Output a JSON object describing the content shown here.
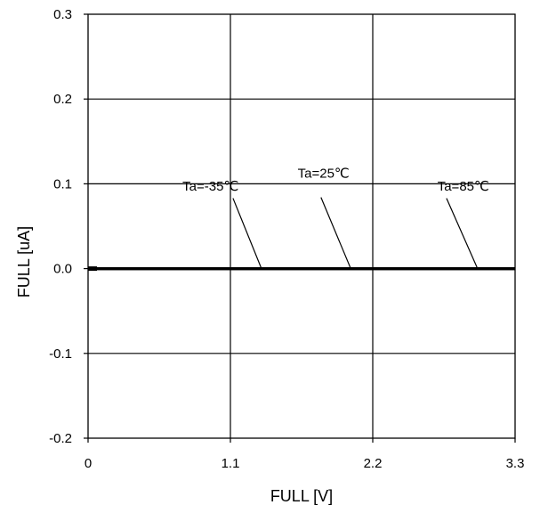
{
  "chart_data": {
    "type": "line",
    "title": "",
    "xlabel": "FULL [V]",
    "ylabel": "FULL [uA]",
    "xlim": [
      0,
      3.3
    ],
    "ylim": [
      -0.2,
      0.3
    ],
    "grid": true,
    "x_ticks": [
      0,
      1.1,
      2.2,
      3.3
    ],
    "y_ticks": [
      -0.2,
      -0.1,
      0.0,
      0.1,
      0.2,
      0.3
    ],
    "x_tick_labels": [
      "0",
      "1.1",
      "2.2",
      "3.3"
    ],
    "y_tick_labels": [
      "-0.2",
      "-0.1",
      "0.0",
      "0.1",
      "0.2",
      "0.3"
    ],
    "series": [
      {
        "name": "Ta=-35℃",
        "x": [
          0,
          0.55,
          1.1,
          1.65,
          2.2,
          2.75,
          3.3
        ],
        "y": [
          0,
          0,
          0,
          0,
          0,
          0,
          0
        ]
      },
      {
        "name": "Ta=25℃",
        "x": [
          0,
          0.55,
          1.1,
          1.65,
          2.2,
          2.75,
          3.3
        ],
        "y": [
          0,
          0,
          0,
          0,
          0,
          0,
          0
        ]
      },
      {
        "name": "Ta=85℃",
        "x": [
          0,
          0.55,
          1.1,
          1.65,
          2.2,
          2.75,
          3.3
        ],
        "y": [
          0,
          0,
          0,
          0,
          0,
          0,
          0
        ]
      }
    ],
    "annotations": [
      {
        "text": "Ta=-35℃",
        "text_x": 0.73,
        "text_y": 0.092,
        "from_x": 1.12,
        "from_y": 0.083,
        "to_x": 1.34,
        "to_y": 0.0
      },
      {
        "text": "Ta=25℃",
        "text_x": 1.62,
        "text_y": 0.107,
        "from_x": 1.8,
        "from_y": 0.084,
        "to_x": 2.03,
        "to_y": 0.0
      },
      {
        "text": "Ta=85℃",
        "text_x": 2.7,
        "text_y": 0.092,
        "from_x": 2.77,
        "from_y": 0.083,
        "to_x": 3.01,
        "to_y": 0.0
      }
    ]
  }
}
